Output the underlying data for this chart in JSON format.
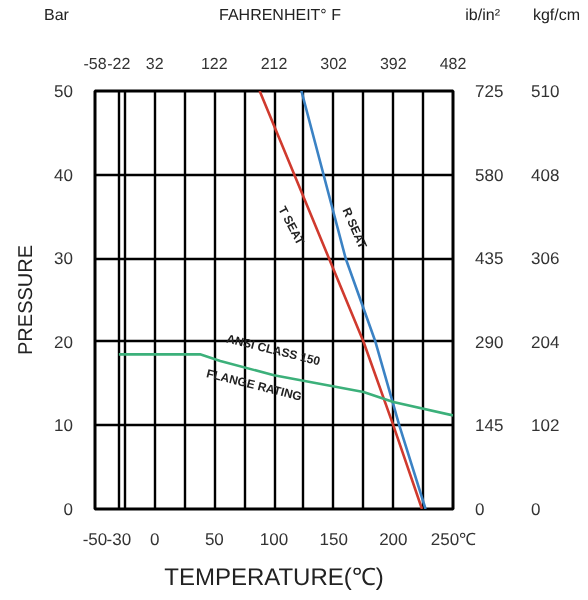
{
  "chart_data": {
    "type": "line",
    "xlabel": "TEMPERATURE(℃)",
    "ylabel": "PRESSURE",
    "x2label": "FAHRENHEIT° F",
    "y2label": "ib/in²",
    "y3label": "kgf/cm",
    "xlim": [
      -50,
      250
    ],
    "xticks": [
      -50,
      -30,
      {
        "value": -25,
        "label": null
      },
      0,
      {
        "value": 25,
        "label": null
      },
      50,
      {
        "value": 75,
        "label": null
      },
      100,
      {
        "value": 125,
        "label": null
      },
      150,
      {
        "value": 175,
        "label": null
      },
      200,
      {
        "value": 225,
        "label": null
      },
      {
        "value": 250,
        "label": "250℃"
      }
    ],
    "x2lim": [
      -58,
      482
    ],
    "x2ticks": [
      -58,
      -22,
      32,
      122,
      212,
      302,
      392,
      482
    ],
    "ylim": [
      0,
      50
    ],
    "yticks": [
      0,
      10,
      20,
      30,
      40,
      50
    ],
    "y2lim": [
      0,
      725
    ],
    "y2ticks": [
      0,
      145,
      290,
      435,
      580,
      725
    ],
    "y3lim": [
      0,
      510
    ],
    "y3ticks": [
      0,
      102,
      204,
      306,
      408,
      510
    ],
    "grid": true,
    "series": [
      {
        "color": "#d03a2e",
        "x": [
          88,
          175,
          200,
          224
        ],
        "values": [
          50,
          20,
          10,
          0
        ]
      },
      {
        "color": "#3b82c4",
        "x": [
          123,
          160,
          185,
          205,
          227
        ],
        "values": [
          50,
          30,
          20,
          10,
          0
        ]
      },
      {
        "color": "#3cb07a",
        "x": [
          -30,
          38,
          55,
          100,
          175,
          200,
          250
        ],
        "values": [
          18.5,
          18.5,
          17.7,
          16,
          14,
          12.8,
          11.2
        ]
      }
    ],
    "annotations": [
      "Bar",
      "T SEAT",
      "R SEAT",
      "ANSI CLASS 150",
      "FLANGE RATING"
    ]
  }
}
